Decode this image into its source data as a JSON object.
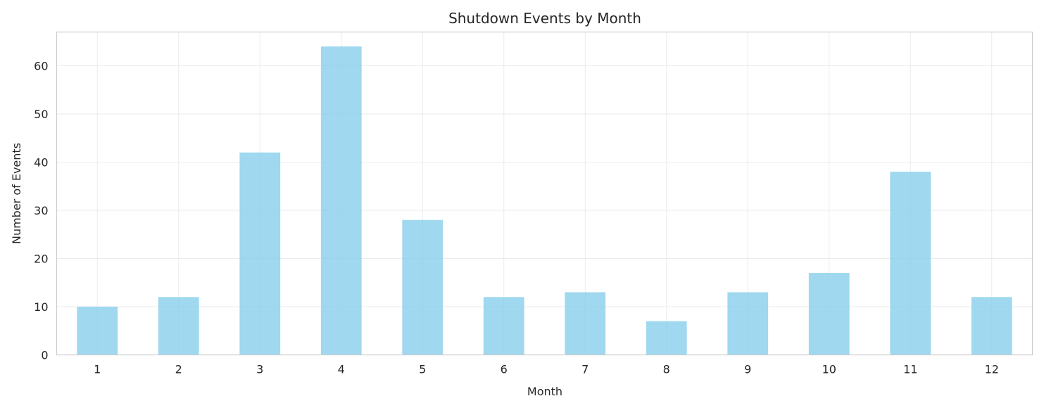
{
  "chart_data": {
    "type": "bar",
    "title": "Shutdown Events by Month",
    "xlabel": "Month",
    "ylabel": "Number of Events",
    "categories": [
      "1",
      "2",
      "3",
      "4",
      "5",
      "6",
      "7",
      "8",
      "9",
      "10",
      "11",
      "12"
    ],
    "values": [
      10,
      12,
      42,
      64,
      28,
      12,
      13,
      7,
      13,
      17,
      38,
      12
    ],
    "ylim": [
      0,
      67
    ],
    "yticks": [
      0,
      10,
      20,
      30,
      40,
      50,
      60
    ],
    "grid": true,
    "legend": "none",
    "bar_color": "#87ceeb",
    "bar_opacity": 0.8
  }
}
